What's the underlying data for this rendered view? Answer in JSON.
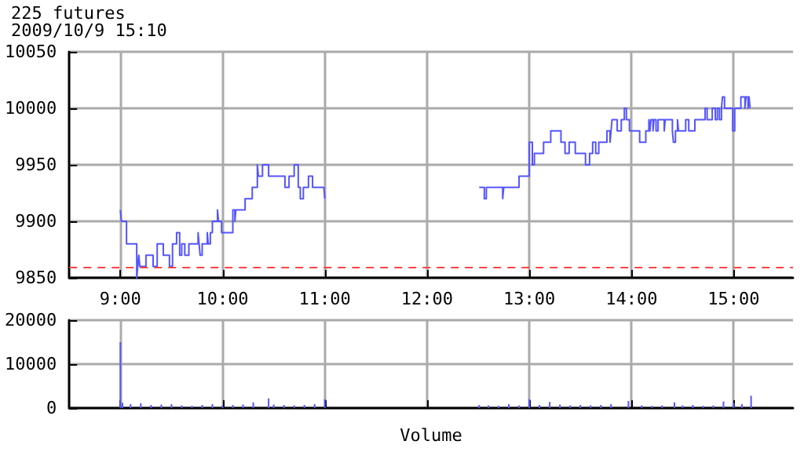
{
  "chart_data": [
    {
      "type": "step",
      "title": "225 futures",
      "subtitle": "2009/10/9 15:10",
      "xlim": [
        8.5,
        15.58
      ],
      "xticks": [
        {
          "value": 9,
          "label": "9:00"
        },
        {
          "value": 10,
          "label": "10:00"
        },
        {
          "value": 11,
          "label": "11:00"
        },
        {
          "value": 12,
          "label": "12:00"
        },
        {
          "value": 13,
          "label": "13:00"
        },
        {
          "value": 14,
          "label": "14:00"
        },
        {
          "value": 15,
          "label": "15:00"
        }
      ],
      "ylim": [
        9850,
        10050
      ],
      "yticks": [
        9850,
        9900,
        9950,
        10000,
        10050
      ],
      "grid": true,
      "marker": "none",
      "line_style": "solid",
      "ref_lines": [
        {
          "axis": "y",
          "value": 9860,
          "color": "#ff4444",
          "line_style": "dashed"
        }
      ],
      "series": [
        {
          "color": "#5555ff",
          "x": [
            9.0,
            9.01,
            9.06,
            9.16,
            9.17,
            9.18,
            9.19,
            9.25,
            9.32,
            9.36,
            9.42,
            9.48,
            9.51,
            9.55,
            9.58,
            9.6,
            9.63,
            9.67,
            9.76,
            9.77,
            9.78,
            9.8,
            9.85,
            9.86,
            9.88,
            9.9,
            9.95,
            9.96,
            9.99,
            10.1,
            10.12,
            10.13,
            10.22,
            10.29,
            10.34,
            10.35,
            10.39,
            10.45,
            10.61,
            10.65,
            10.7,
            10.74,
            10.76,
            10.79,
            10.84,
            10.88,
            10.99,
            11.0
          ],
          "values": [
            9910,
            9900,
            9880,
            9850,
            9860,
            9870,
            9860,
            9870,
            9860,
            9880,
            9870,
            9860,
            9880,
            9890,
            9870,
            9880,
            9870,
            9880,
            9890,
            9880,
            9870,
            9880,
            9890,
            9880,
            9890,
            9900,
            9910,
            9900,
            9890,
            9910,
            9900,
            9910,
            9920,
            9930,
            9950,
            9940,
            9950,
            9940,
            9930,
            9940,
            9950,
            9930,
            9920,
            9930,
            9940,
            9930,
            9930,
            9920
          ]
        },
        {
          "color": "#5555ff",
          "x": [
            12.51,
            12.56,
            12.58,
            12.74,
            12.75,
            12.9,
            13.0,
            13.03,
            13.05,
            13.14,
            13.21,
            13.31,
            13.35,
            13.39,
            13.45,
            13.55,
            13.59,
            13.62,
            13.65,
            13.68,
            13.76,
            13.79,
            13.8,
            13.81,
            13.86,
            13.9,
            13.93,
            13.95,
            13.98,
            14.08,
            14.14,
            14.17,
            14.18,
            14.19,
            14.21,
            14.22,
            14.24,
            14.26,
            14.32,
            14.33,
            14.4,
            14.41,
            14.43,
            14.45,
            14.46,
            14.53,
            14.56,
            14.62,
            14.72,
            14.74,
            14.79,
            14.82,
            14.84,
            14.86,
            14.88,
            14.89,
            14.91,
            14.99,
            15.01,
            15.07,
            15.11,
            15.12,
            15.14,
            15.15,
            15.16
          ],
          "values": [
            9930,
            9920,
            9930,
            9920,
            9930,
            9940,
            9970,
            9950,
            9960,
            9970,
            9980,
            9970,
            9960,
            9970,
            9960,
            9950,
            9960,
            9970,
            9960,
            9970,
            9980,
            9970,
            9980,
            9990,
            9980,
            9990,
            10000,
            9990,
            9980,
            9970,
            9980,
            9990,
            9980,
            9990,
            9980,
            9990,
            9980,
            9990,
            9980,
            9990,
            9980,
            9970,
            9980,
            9990,
            9980,
            9990,
            9980,
            9990,
            10000,
            9990,
            10000,
            9990,
            10000,
            9990,
            10000,
            10010,
            10000,
            9980,
            10000,
            10010,
            10000,
            10010,
            10000,
            10010,
            10000
          ]
        }
      ]
    },
    {
      "type": "bar",
      "xlabel": "Volume",
      "tick_labels": "y",
      "xlim": [
        8.5,
        15.58
      ],
      "xticks": [
        {
          "value": 9,
          "label": null
        },
        {
          "value": 10,
          "label": null
        },
        {
          "value": 11,
          "label": null
        },
        {
          "value": 12,
          "label": null
        },
        {
          "value": 13,
          "label": null
        },
        {
          "value": 14,
          "label": null
        },
        {
          "value": 15,
          "label": null
        }
      ],
      "ylim": [
        0,
        20000
      ],
      "yticks": [
        0,
        10000,
        20000
      ],
      "grid": true,
      "series": [
        {
          "color": "#5555ff",
          "x": [
            9.0,
            9.02,
            9.1,
            9.2,
            9.3,
            9.4,
            9.5,
            9.6,
            9.7,
            9.8,
            9.9,
            10.0,
            10.1,
            10.2,
            10.3,
            10.45,
            10.5,
            10.6,
            10.7,
            10.8,
            10.9,
            11.0,
            12.51,
            12.6,
            12.7,
            12.8,
            12.9,
            13.0,
            13.1,
            13.2,
            13.3,
            13.4,
            13.5,
            13.6,
            13.7,
            13.8,
            13.97,
            14.1,
            14.2,
            14.3,
            14.42,
            14.5,
            14.6,
            14.7,
            14.8,
            14.9,
            15.0,
            15.08,
            15.17
          ],
          "values": [
            15000,
            1200,
            900,
            1100,
            700,
            800,
            900,
            600,
            500,
            700,
            900,
            600,
            700,
            800,
            1300,
            2200,
            800,
            700,
            600,
            700,
            900,
            2000,
            700,
            600,
            500,
            900,
            600,
            2000,
            700,
            1400,
            800,
            600,
            700,
            600,
            700,
            900,
            1600,
            600,
            500,
            600,
            1300,
            600,
            700,
            500,
            600,
            1500,
            1200,
            900,
            2800
          ]
        }
      ]
    }
  ]
}
